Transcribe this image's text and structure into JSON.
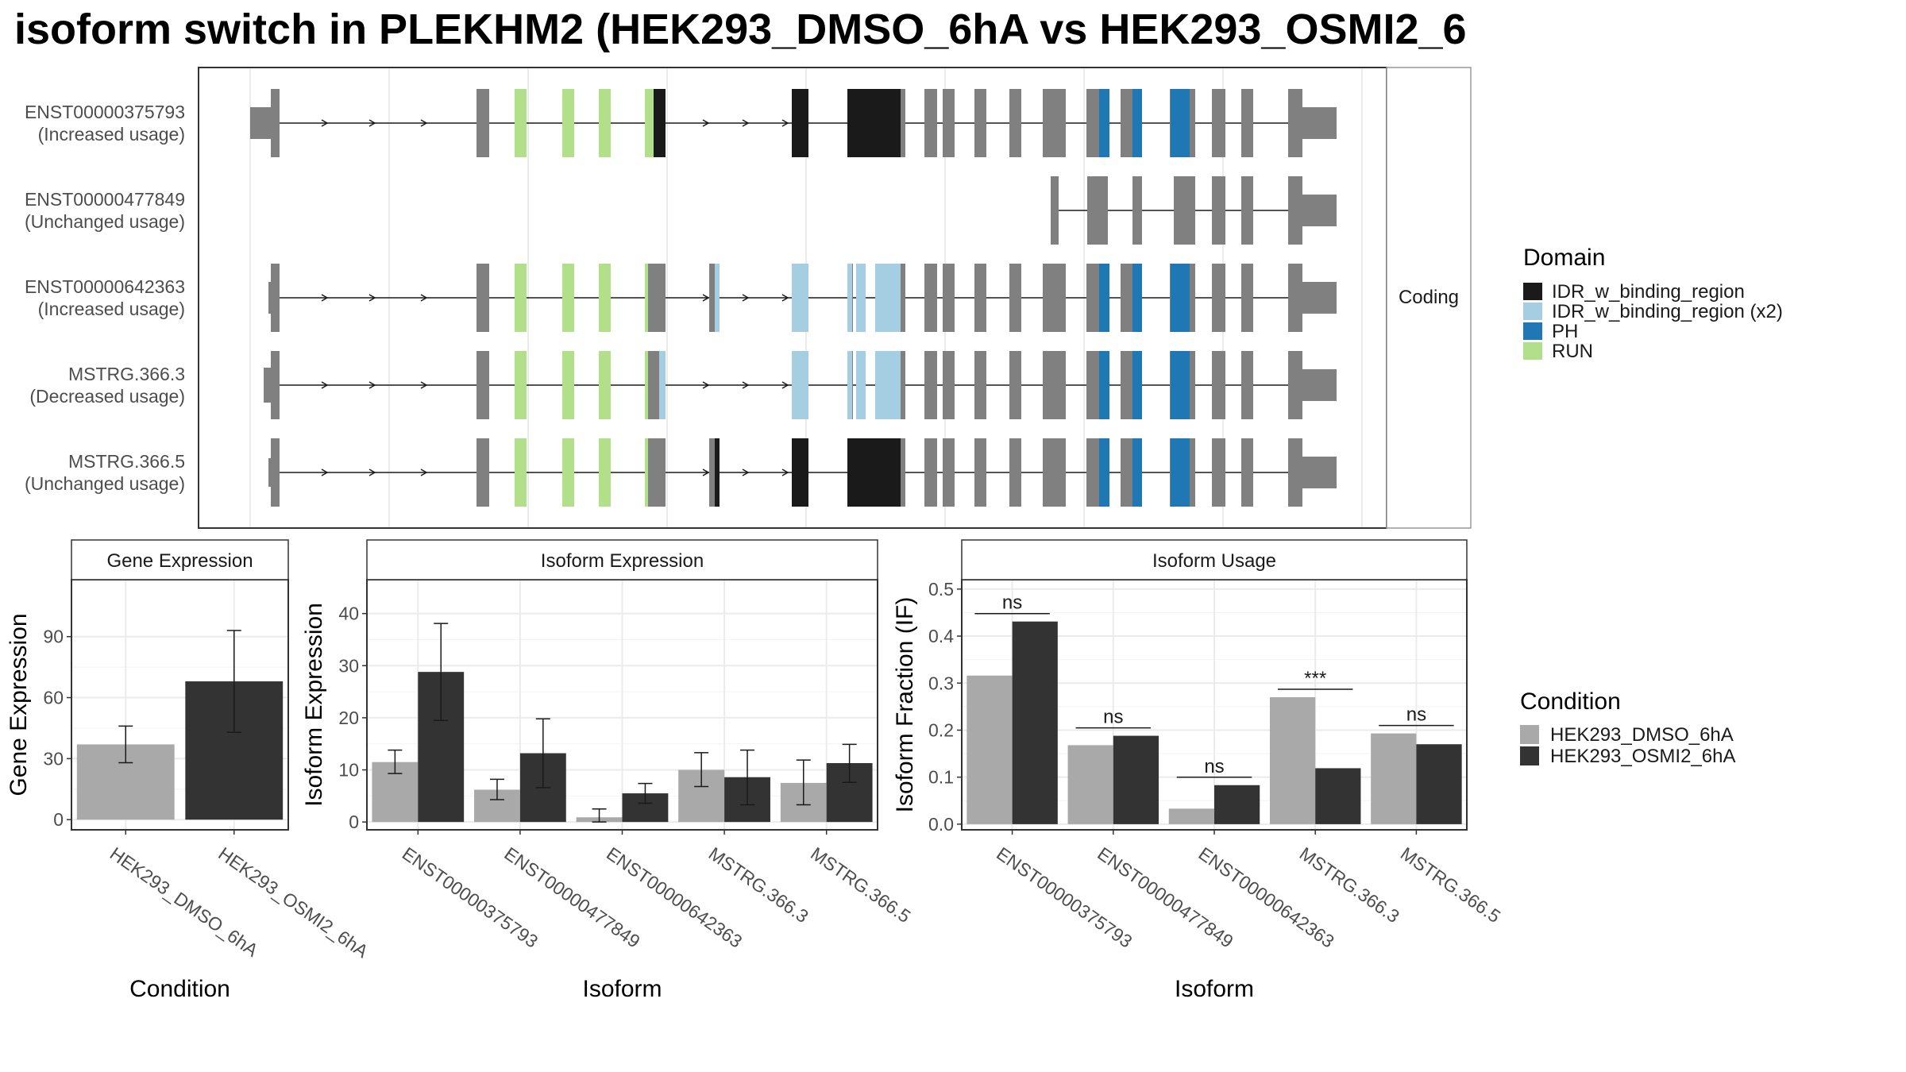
{
  "title": "isoform switch in PLEKHM2 (HEK293_DMSO_6hA vs HEK293_OSMI2_6",
  "colors": {
    "exon": "#808080",
    "IDR_w_binding_region": "#1a1a1a",
    "IDR_w_binding_region_x2": "#a6cee3",
    "PH": "#1f78b4",
    "RUN": "#b2df8a",
    "dmso": "#a9a9a9",
    "osmi": "#333333",
    "grid": "#ebebeb"
  },
  "structure": {
    "strip_label": "Coding",
    "legend_title": "Domain",
    "legend_items": [
      {
        "label": "IDR_w_binding_region",
        "color_key": "IDR_w_binding_region"
      },
      {
        "label": "IDR_w_binding_region (x2)",
        "color_key": "IDR_w_binding_region_x2"
      },
      {
        "label": "PH",
        "color_key": "PH"
      },
      {
        "label": "RUN",
        "color_key": "RUN"
      }
    ],
    "transcripts": [
      {
        "id": "ENST00000375793",
        "status": "(Increased usage)"
      },
      {
        "id": "ENST00000477849",
        "status": "(Unchanged usage)"
      },
      {
        "id": "ENST00000642363",
        "status": "(Increased usage)"
      },
      {
        "id": "MSTRG.366.3",
        "status": "(Decreased usage)"
      },
      {
        "id": "MSTRG.366.5",
        "status": "(Unchanged usage)"
      }
    ]
  },
  "chart_data": [
    {
      "type": "bar",
      "title": "Gene Expression",
      "xlabel": "Condition",
      "ylabel": "Gene Expression",
      "categories": [
        "HEK293_DMSO_6hA",
        "HEK293_OSMI2_6hA"
      ],
      "values": [
        37,
        68
      ],
      "error_low": [
        28,
        43
      ],
      "error_high": [
        46,
        93
      ],
      "ylim": [
        -5,
        118
      ],
      "yticks": [
        0,
        30,
        60,
        90
      ]
    },
    {
      "type": "bar",
      "title": "Isoform Expression",
      "xlabel": "Isoform",
      "ylabel": "Isoform Expression",
      "categories": [
        "ENST00000375793",
        "ENST00000477849",
        "ENST00000642363",
        "MSTRG.366.3",
        "MSTRG.366.5"
      ],
      "series": [
        {
          "name": "HEK293_DMSO_6hA",
          "values": [
            11.5,
            6.2,
            0.9,
            10.0,
            7.5
          ],
          "error_low": [
            9.3,
            4.3,
            0.0,
            6.8,
            3.3
          ],
          "error_high": [
            13.8,
            8.2,
            2.5,
            13.3,
            11.9
          ]
        },
        {
          "name": "HEK293_OSMI2_6hA",
          "values": [
            28.8,
            13.2,
            5.5,
            8.6,
            11.3
          ],
          "error_low": [
            19.5,
            6.6,
            3.6,
            3.3,
            7.6
          ],
          "error_high": [
            38.1,
            19.8,
            7.4,
            13.8,
            14.9
          ]
        }
      ],
      "ylim": [
        -1.5,
        46.5
      ],
      "yticks": [
        0,
        10,
        20,
        30,
        40
      ]
    },
    {
      "type": "bar",
      "title": "Isoform Usage",
      "xlabel": "Isoform",
      "ylabel": "Isoform Fraction (IF)",
      "categories": [
        "ENST00000375793",
        "ENST00000477849",
        "ENST00000642363",
        "MSTRG.366.3",
        "MSTRG.366.5"
      ],
      "series": [
        {
          "name": "HEK293_DMSO_6hA",
          "values": [
            0.316,
            0.168,
            0.033,
            0.27,
            0.193
          ]
        },
        {
          "name": "HEK293_OSMI2_6hA",
          "values": [
            0.431,
            0.188,
            0.083,
            0.119,
            0.17
          ]
        }
      ],
      "significance": [
        "ns",
        "ns",
        "ns",
        "***",
        "ns"
      ],
      "ylim": [
        -0.012,
        0.52
      ],
      "yticks": [
        0.0,
        0.1,
        0.2,
        0.3,
        0.4,
        0.5
      ],
      "ytick_labels": [
        "0.0",
        "0.1",
        "0.2",
        "0.3",
        "0.4",
        "0.5"
      ]
    }
  ],
  "condition_legend": {
    "title": "Condition",
    "items": [
      {
        "label": "HEK293_DMSO_6hA",
        "color_key": "dmso"
      },
      {
        "label": "HEK293_OSMI2_6hA",
        "color_key": "osmi"
      }
    ]
  }
}
